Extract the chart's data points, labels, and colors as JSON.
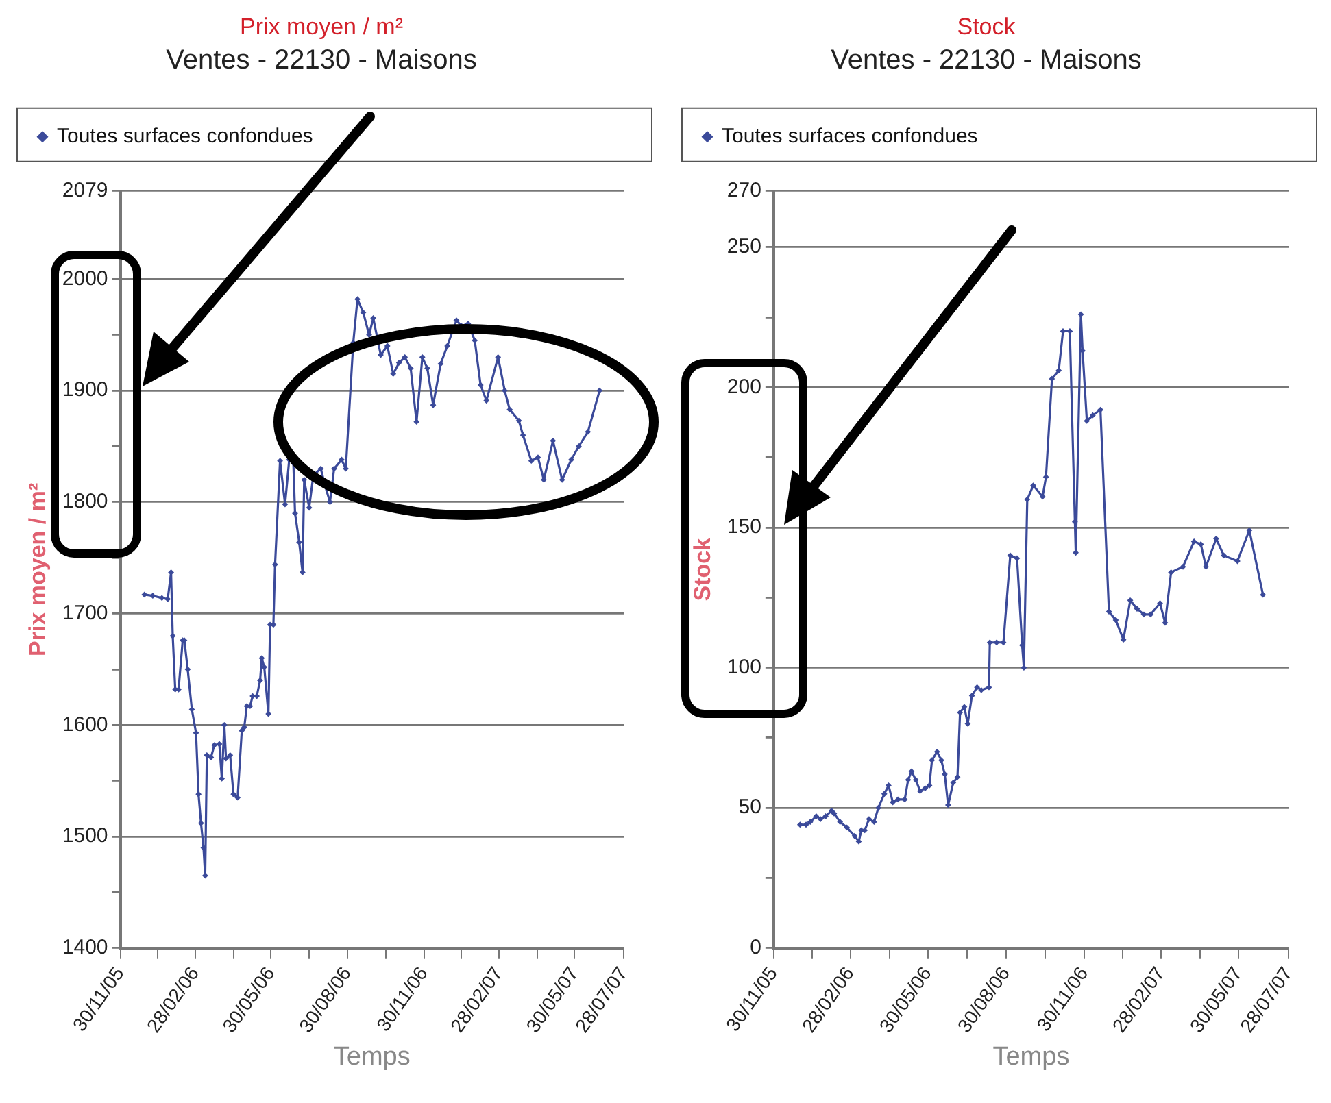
{
  "chart_data": [
    {
      "type": "line",
      "title": "Prix moyen / m²",
      "subtitle": "Ventes - 22130 - Maisons",
      "xlabel": "Temps",
      "ylabel": "Prix moyen / m²",
      "legend": "top",
      "grid": "y",
      "marker": "diamond",
      "xlim": [
        "2005-11-30",
        "2007-07-28"
      ],
      "xticks": [
        {
          "value": "2005-11-30",
          "label": "30/11/05"
        },
        {
          "value": "2006-01-14",
          "label": null
        },
        {
          "value": "2006-02-28",
          "label": "28/02/06"
        },
        {
          "value": "2006-04-15",
          "label": null
        },
        {
          "value": "2006-05-30",
          "label": "30/05/06"
        },
        {
          "value": "2006-07-15",
          "label": null
        },
        {
          "value": "2006-08-30",
          "label": "30/08/06"
        },
        {
          "value": "2006-10-15",
          "label": null
        },
        {
          "value": "2006-11-30",
          "label": "30/11/06"
        },
        {
          "value": "2007-01-14",
          "label": null
        },
        {
          "value": "2007-02-28",
          "label": "28/02/07"
        },
        {
          "value": "2007-04-15",
          "label": null
        },
        {
          "value": "2007-05-30",
          "label": "30/05/07"
        },
        {
          "value": "2007-07-28",
          "label": "28/07/07"
        }
      ],
      "ylim": [
        1400,
        2079
      ],
      "yticks": [
        1400,
        {
          "value": 1450,
          "label": null
        },
        1500,
        {
          "value": 1550,
          "label": null
        },
        1600,
        {
          "value": 1650,
          "label": null
        },
        1700,
        {
          "value": 1750,
          "label": null
        },
        1800,
        {
          "value": 1850,
          "label": null
        },
        1900,
        {
          "value": 1950,
          "label": null
        },
        2000,
        2079
      ],
      "series": [
        {
          "name": "Toutes surfaces confondues",
          "color": "#3b4a9a",
          "x": [
            "2005-12-29",
            "2006-01-08",
            "2006-01-19",
            "2006-01-26",
            "2006-01-30",
            "2006-02-01",
            "2006-02-04",
            "2006-02-08",
            "2006-02-13",
            "2006-02-15",
            "2006-02-19",
            "2006-02-24",
            "2006-03-01",
            "2006-03-04",
            "2006-03-07",
            "2006-03-10",
            "2006-03-12",
            "2006-03-14",
            "2006-03-19",
            "2006-03-23",
            "2006-03-29",
            "2006-04-01",
            "2006-04-04",
            "2006-04-06",
            "2006-04-11",
            "2006-04-15",
            "2006-04-20",
            "2006-04-25",
            "2006-04-28",
            "2006-05-01",
            "2006-05-05",
            "2006-05-08",
            "2006-05-13",
            "2006-05-17",
            "2006-05-19",
            "2006-05-22",
            "2006-05-27",
            "2006-05-29",
            "2006-06-02",
            "2006-06-04",
            "2006-06-10",
            "2006-06-16",
            "2006-06-21",
            "2006-06-26",
            "2006-06-28",
            "2006-07-03",
            "2006-07-07",
            "2006-07-09",
            "2006-07-15",
            "2006-07-20",
            "2006-07-29",
            "2006-08-03",
            "2006-08-09",
            "2006-08-14",
            "2006-08-23",
            "2006-08-28",
            "2006-09-06",
            "2006-09-11",
            "2006-09-18",
            "2006-09-25",
            "2006-09-30",
            "2006-10-09",
            "2006-10-17",
            "2006-10-24",
            "2006-10-31",
            "2006-11-07",
            "2006-11-14",
            "2006-11-21",
            "2006-11-28",
            "2006-12-04",
            "2006-12-11",
            "2006-12-20",
            "2006-12-28",
            "2007-01-08",
            "2007-01-14",
            "2007-01-22",
            "2007-01-30",
            "2007-02-06",
            "2007-02-13",
            "2007-02-27",
            "2007-03-07",
            "2007-03-13",
            "2007-03-24",
            "2007-03-29",
            "2007-04-08",
            "2007-04-16",
            "2007-04-23",
            "2007-05-04",
            "2007-05-15",
            "2007-05-26",
            "2007-06-04",
            "2007-06-15",
            "2007-06-29"
          ],
          "values": [
            1717,
            1716,
            1714,
            1713,
            1737,
            1680,
            1632,
            1632,
            1676,
            1676,
            1650,
            1614,
            1593,
            1538,
            1512,
            1490,
            1465,
            1573,
            1571,
            1582,
            1583,
            1552,
            1600,
            1570,
            1573,
            1538,
            1535,
            1595,
            1598,
            1617,
            1617,
            1626,
            1626,
            1640,
            1660,
            1652,
            1610,
            1690,
            1690,
            1744,
            1837,
            1798,
            1838,
            1835,
            1790,
            1764,
            1737,
            1820,
            1795,
            1824,
            1830,
            1815,
            1800,
            1830,
            1838,
            1830,
            1943,
            1982,
            1970,
            1950,
            1965,
            1932,
            1940,
            1915,
            1925,
            1930,
            1920,
            1872,
            1930,
            1920,
            1887,
            1924,
            1940,
            1963,
            1958,
            1960,
            1945,
            1905,
            1891,
            1930,
            1900,
            1883,
            1873,
            1860,
            1837,
            1840,
            1820,
            1855,
            1820,
            1838,
            1850,
            1863,
            1900
          ]
        }
      ]
    },
    {
      "type": "line",
      "title": "Stock",
      "subtitle": "Ventes - 22130 - Maisons",
      "xlabel": "Temps",
      "ylabel": "Stock",
      "legend": "top",
      "grid": "y",
      "marker": "diamond",
      "xlim": [
        "2005-11-30",
        "2007-07-28"
      ],
      "xticks": [
        {
          "value": "2005-11-30",
          "label": "30/11/05"
        },
        {
          "value": "2006-01-14",
          "label": null
        },
        {
          "value": "2006-02-28",
          "label": "28/02/06"
        },
        {
          "value": "2006-04-15",
          "label": null
        },
        {
          "value": "2006-05-30",
          "label": "30/05/06"
        },
        {
          "value": "2006-07-15",
          "label": null
        },
        {
          "value": "2006-08-30",
          "label": "30/08/06"
        },
        {
          "value": "2006-10-15",
          "label": null
        },
        {
          "value": "2006-11-30",
          "label": "30/11/06"
        },
        {
          "value": "2007-01-14",
          "label": null
        },
        {
          "value": "2007-02-28",
          "label": "28/02/07"
        },
        {
          "value": "2007-04-15",
          "label": null
        },
        {
          "value": "2007-05-30",
          "label": "30/05/07"
        },
        {
          "value": "2007-07-28",
          "label": "28/07/07"
        }
      ],
      "ylim": [
        0,
        270
      ],
      "yticks": [
        0,
        {
          "value": 25,
          "label": null
        },
        50,
        {
          "value": 75,
          "label": null
        },
        100,
        {
          "value": 125,
          "label": null
        },
        150,
        {
          "value": 175,
          "label": null
        },
        200,
        {
          "value": 225,
          "label": null
        },
        250,
        270
      ],
      "series": [
        {
          "name": "Toutes surfaces confondues",
          "color": "#3b4a9a",
          "x": [
            "2005-12-31",
            "2006-01-07",
            "2006-01-12",
            "2006-01-19",
            "2006-01-24",
            "2006-01-30",
            "2006-02-06",
            "2006-02-09",
            "2006-02-16",
            "2006-02-24",
            "2006-03-05",
            "2006-03-10",
            "2006-03-13",
            "2006-03-17",
            "2006-03-22",
            "2006-03-28",
            "2006-04-02",
            "2006-04-09",
            "2006-04-14",
            "2006-04-19",
            "2006-04-25",
            "2006-05-03",
            "2006-05-07",
            "2006-05-11",
            "2006-05-16",
            "2006-05-21",
            "2006-05-27",
            "2006-06-01",
            "2006-06-04",
            "2006-06-10",
            "2006-06-15",
            "2006-06-19",
            "2006-06-23",
            "2006-06-29",
            "2006-07-04",
            "2006-07-07",
            "2006-07-12",
            "2006-07-16",
            "2006-07-21",
            "2006-07-27",
            "2006-08-01",
            "2006-08-10",
            "2006-08-11",
            "2006-08-19",
            "2006-08-27",
            "2006-09-04",
            "2006-09-12",
            "2006-09-18",
            "2006-09-20",
            "2006-09-24",
            "2006-10-01",
            "2006-10-12",
            "2006-10-16",
            "2006-10-23",
            "2006-10-31",
            "2006-11-05",
            "2006-11-13",
            "2006-11-19",
            "2006-11-20",
            "2006-11-26",
            "2006-11-28",
            "2006-12-03",
            "2006-12-10",
            "2006-12-19",
            "2006-12-29",
            "2007-01-06",
            "2007-01-15",
            "2007-01-23",
            "2007-01-31",
            "2007-02-08",
            "2007-02-16",
            "2007-02-27",
            "2007-03-05",
            "2007-03-12",
            "2007-03-26",
            "2007-04-08",
            "2007-04-16",
            "2007-04-22",
            "2007-05-04",
            "2007-05-13",
            "2007-05-29",
            "2007-06-12",
            "2007-06-28"
          ],
          "values": [
            44,
            44,
            45,
            47,
            46,
            47,
            49,
            48,
            45,
            43,
            40,
            38,
            42,
            42,
            46,
            45,
            50,
            55,
            58,
            52,
            53,
            53,
            60,
            63,
            60,
            56,
            57,
            58,
            67,
            70,
            67,
            62,
            51,
            59,
            61,
            84,
            86,
            80,
            90,
            93,
            92,
            93,
            109,
            109,
            109,
            140,
            139,
            108,
            100,
            160,
            165,
            161,
            168,
            203,
            206,
            220,
            220,
            152,
            141,
            226,
            213,
            188,
            190,
            192,
            120,
            117,
            110,
            124,
            121,
            119,
            119,
            123,
            116,
            134,
            136,
            145,
            144,
            136,
            146,
            140,
            138,
            149,
            126
          ]
        }
      ]
    }
  ]
}
